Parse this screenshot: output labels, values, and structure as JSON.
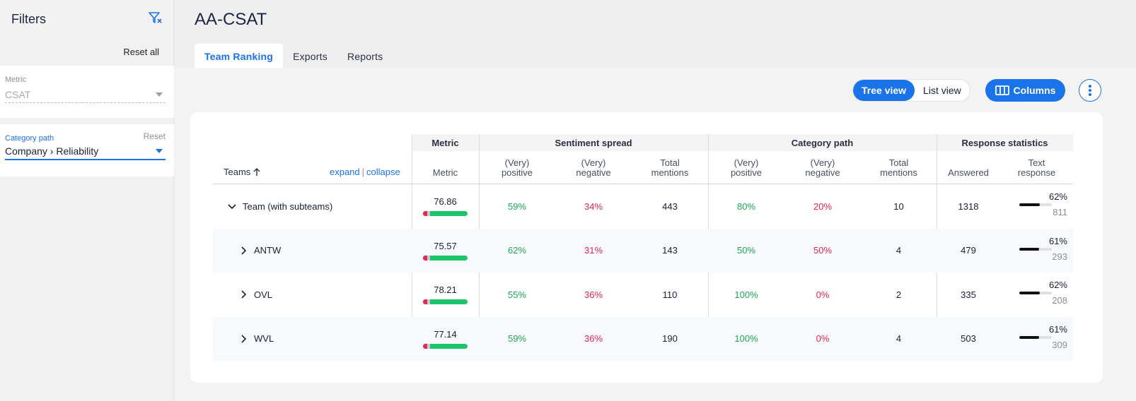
{
  "sidebar": {
    "title": "Filters",
    "reset_all": "Reset all",
    "metric_filter": {
      "label": "Metric",
      "value": "CSAT"
    },
    "category_filter": {
      "label": "Category path",
      "reset": "Reset",
      "value": "Company › Reliability"
    }
  },
  "header": {
    "title": "AA-CSAT",
    "tabs": [
      {
        "label": "Team Ranking",
        "active": true
      },
      {
        "label": "Exports",
        "active": false
      },
      {
        "label": "Reports",
        "active": false
      }
    ]
  },
  "toolbar": {
    "tree_view": "Tree view",
    "list_view": "List view",
    "columns": "Columns"
  },
  "table": {
    "groups": {
      "metric": "Metric",
      "sentiment": "Sentiment spread",
      "category": "Category path",
      "response": "Response statistics"
    },
    "headers": {
      "teams": "Teams",
      "expand": "expand",
      "collapse": "collapse",
      "metric": "Metric",
      "very_positive": "(Very)\npositive",
      "very_negative": "(Very)\nnegative",
      "total_mentions": "Total\nmentions",
      "answered": "Answered",
      "text_response": "Text\nresponse"
    },
    "rows": [
      {
        "team": "Team (with subteams)",
        "expanded": true,
        "metric": "76.86",
        "metric_neg": 0.1,
        "metric_neutral": 0.06,
        "sent_pos": "59%",
        "sent_neg": "34%",
        "sent_total": "443",
        "cat_pos": "80%",
        "cat_neg": "20%",
        "cat_total": "10",
        "answered": "1318",
        "text_pct": "62%",
        "text_fraction": 0.62,
        "text_count": "811"
      },
      {
        "team": "ANTW",
        "expanded": false,
        "metric": "75.57",
        "metric_neg": 0.1,
        "metric_neutral": 0.06,
        "sent_pos": "62%",
        "sent_neg": "31%",
        "sent_total": "143",
        "cat_pos": "50%",
        "cat_neg": "50%",
        "cat_total": "4",
        "answered": "479",
        "text_pct": "61%",
        "text_fraction": 0.61,
        "text_count": "293"
      },
      {
        "team": "OVL",
        "expanded": false,
        "metric": "78.21",
        "metric_neg": 0.1,
        "metric_neutral": 0.06,
        "sent_pos": "55%",
        "sent_neg": "36%",
        "sent_total": "110",
        "cat_pos": "100%",
        "cat_neg": "0%",
        "cat_total": "2",
        "answered": "335",
        "text_pct": "62%",
        "text_fraction": 0.62,
        "text_count": "208"
      },
      {
        "team": "WVL",
        "expanded": false,
        "metric": "77.14",
        "metric_neg": 0.1,
        "metric_neutral": 0.06,
        "sent_pos": "59%",
        "sent_neg": "36%",
        "sent_total": "190",
        "cat_pos": "100%",
        "cat_neg": "0%",
        "cat_total": "4",
        "answered": "503",
        "text_pct": "61%",
        "text_fraction": 0.61,
        "text_count": "309"
      }
    ]
  },
  "colors": {
    "accent": "#1a73e8",
    "positive": "#1aa955",
    "negative": "#e8264e"
  }
}
